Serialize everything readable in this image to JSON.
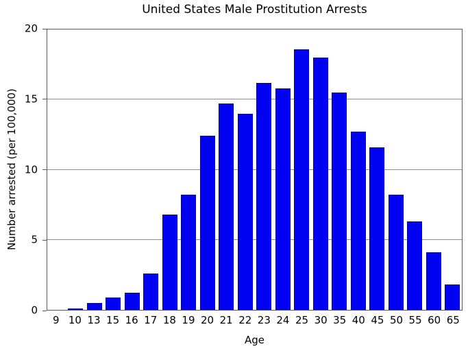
{
  "chart_data": {
    "type": "bar",
    "title": "United States Male Prostitution Arrests",
    "xlabel": "Age",
    "ylabel": "Number arrested (per 100,000)",
    "categories": [
      "9",
      "10",
      "13",
      "15",
      "16",
      "17",
      "18",
      "19",
      "20",
      "21",
      "22",
      "23",
      "24",
      "25",
      "30",
      "35",
      "40",
      "45",
      "50",
      "55",
      "60",
      "65"
    ],
    "values": [
      0,
      0.1,
      0.5,
      0.9,
      1.2,
      2.6,
      6.8,
      8.2,
      12.4,
      14.7,
      14.0,
      16.2,
      15.8,
      18.6,
      18.0,
      15.5,
      12.7,
      11.6,
      8.2,
      6.3,
      4.1,
      1.8
    ],
    "ylim": [
      0,
      20
    ],
    "yticks": [
      0,
      5,
      10,
      15,
      20
    ],
    "grid": true,
    "legend": false,
    "bar_color": "#0202f2",
    "bar_edge_color": "#0000aa",
    "grid_color": "#8c8c8c",
    "axis_color": "#595959"
  }
}
